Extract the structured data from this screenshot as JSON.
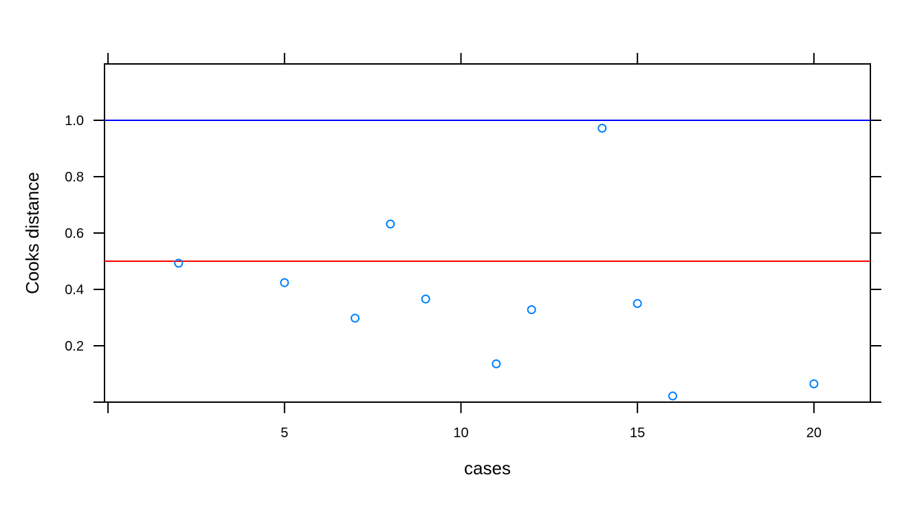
{
  "chart_data": {
    "type": "scatter",
    "title": "",
    "xlabel": "cases",
    "ylabel": "Cooks distance",
    "xlim": [
      -0.1,
      21.6
    ],
    "ylim": [
      0,
      1.2
    ],
    "x_ticks": [
      0,
      5,
      10,
      15,
      20
    ],
    "x_tick_labels": [
      "",
      "5",
      "10",
      "15",
      "20"
    ],
    "y_ticks": [
      0,
      0.2,
      0.4,
      0.6,
      0.8,
      1.0
    ],
    "y_tick_labels": [
      "",
      "0.2",
      "0.4",
      "0.6",
      "0.8",
      "1.0"
    ],
    "grid": false,
    "reference_lines": [
      {
        "y": 1.0,
        "color": "#0000ff"
      },
      {
        "y": 0.5,
        "color": "#ff0000"
      }
    ],
    "point_color": "#0080ff",
    "series": [
      {
        "x": [
          2,
          5,
          7,
          8,
          9,
          11,
          12,
          14,
          15,
          16,
          20
        ],
        "y": [
          0.493,
          0.424,
          0.298,
          0.632,
          0.366,
          0.136,
          0.328,
          0.972,
          0.35,
          0.022,
          0.065
        ]
      }
    ]
  }
}
